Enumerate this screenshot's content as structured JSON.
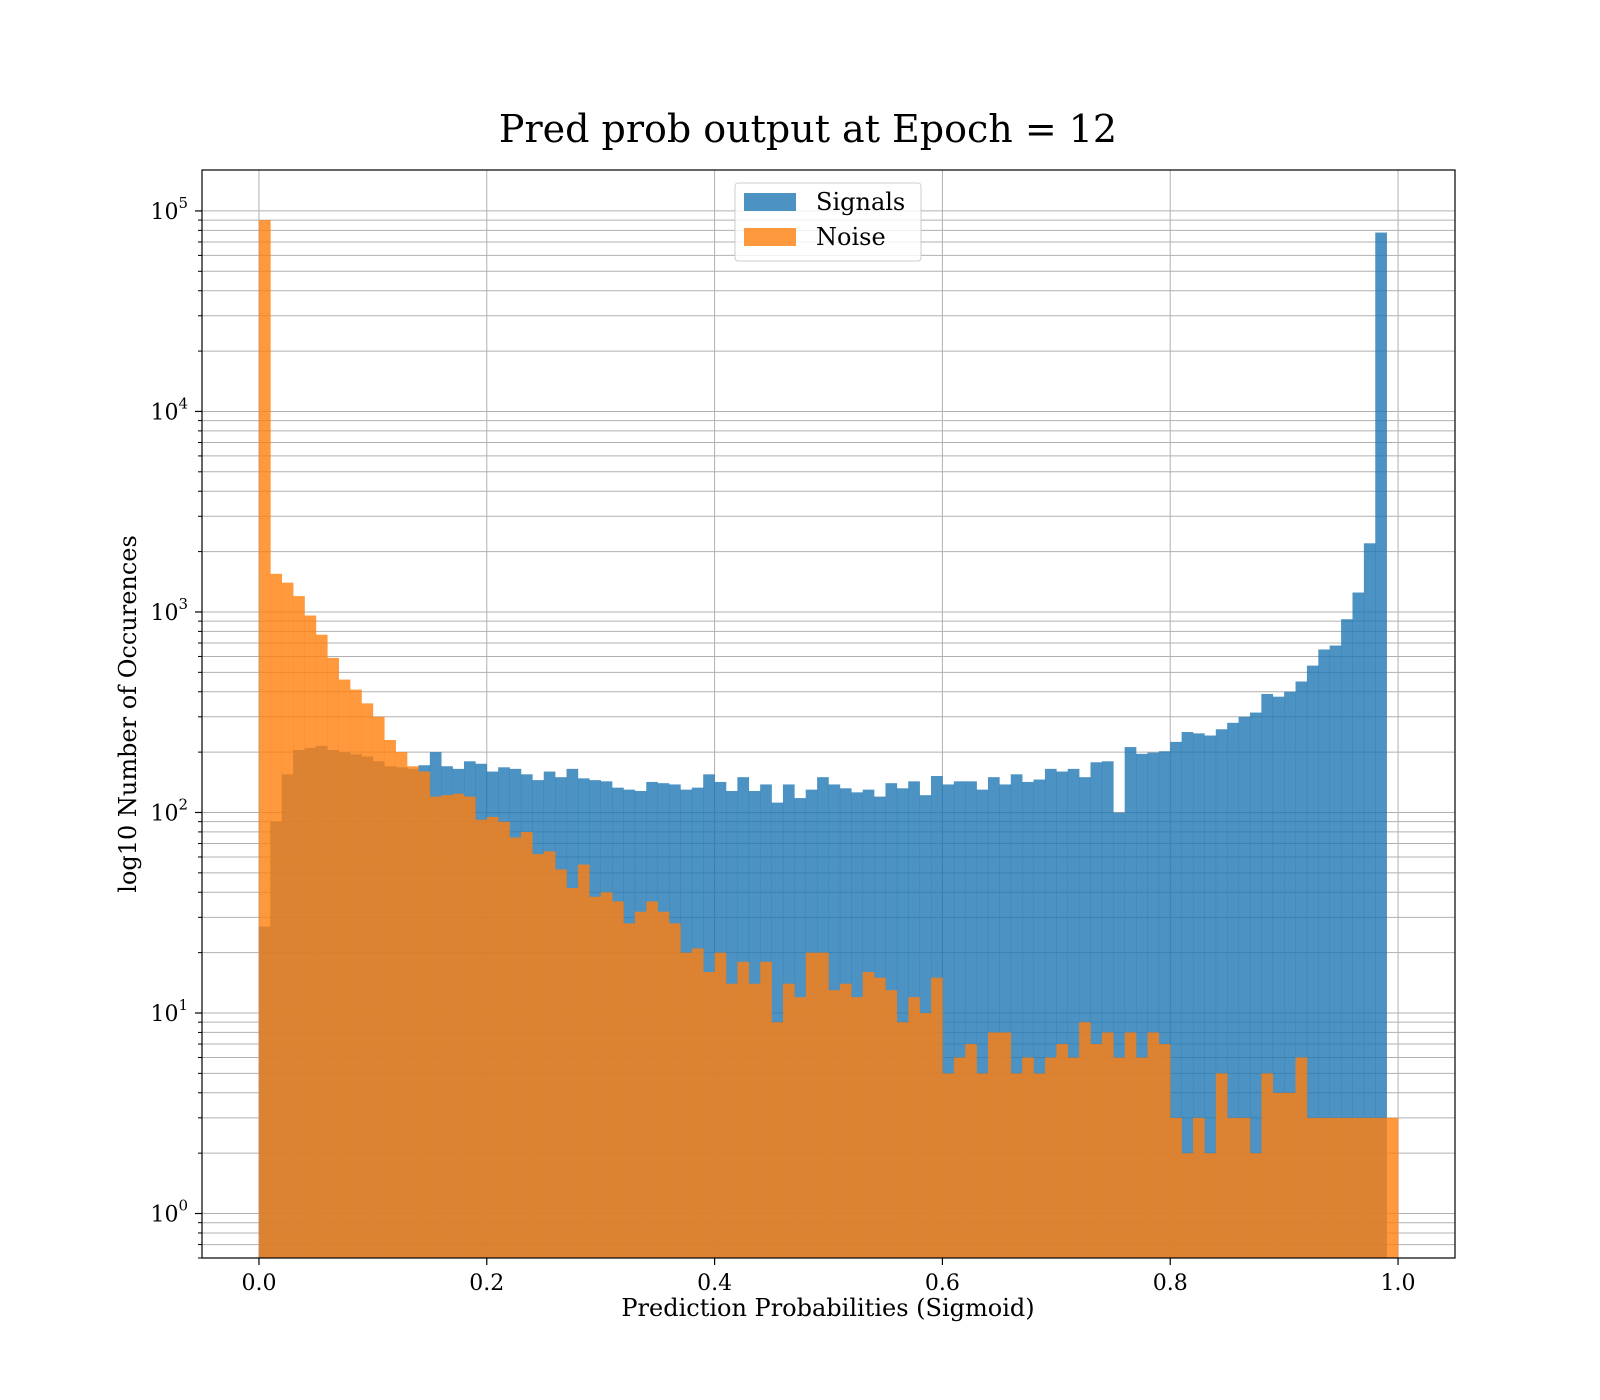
{
  "chart_data": {
    "type": "histogram",
    "title": "Pred prob output at Epoch = 12",
    "xlabel": "Prediction Probabilities (Sigmoid)",
    "ylabel": "log10 Number of Occurences",
    "xlim": [
      -0.05,
      1.05
    ],
    "ylim": [
      0.6,
      160000
    ],
    "yscale": "log",
    "grid": true,
    "legend_position": "upper center",
    "x_ticks": [
      {
        "value": 0.0,
        "label": "0.0"
      },
      {
        "value": 0.2,
        "label": "0.2"
      },
      {
        "value": 0.4,
        "label": "0.4"
      },
      {
        "value": 0.6,
        "label": "0.6"
      },
      {
        "value": 0.8,
        "label": "0.8"
      },
      {
        "value": 1.0,
        "label": "1.0"
      }
    ],
    "y_ticks": [
      {
        "value": 1,
        "base": "10",
        "exp": "0"
      },
      {
        "value": 10,
        "base": "10",
        "exp": "1"
      },
      {
        "value": 100,
        "base": "10",
        "exp": "2"
      },
      {
        "value": 1000,
        "base": "10",
        "exp": "3"
      },
      {
        "value": 10000,
        "base": "10",
        "exp": "4"
      },
      {
        "value": 100000,
        "base": "10",
        "exp": "5"
      }
    ],
    "bin_range": [
      0,
      1
    ],
    "bins": 100,
    "series": [
      {
        "name": "Signals",
        "color": "#1f77b4",
        "alpha": 0.8,
        "counts": [
          27,
          90,
          155,
          205,
          210,
          215,
          205,
          200,
          195,
          190,
          180,
          170,
          168,
          165,
          172,
          200,
          170,
          165,
          180,
          175,
          160,
          168,
          165,
          155,
          145,
          160,
          150,
          165,
          148,
          145,
          143,
          133,
          130,
          128,
          142,
          140,
          138,
          130,
          133,
          155,
          142,
          128,
          150,
          128,
          138,
          112,
          138,
          118,
          130,
          150,
          138,
          132,
          126,
          130,
          120,
          140,
          132,
          143,
          122,
          152,
          138,
          143,
          143,
          130,
          150,
          138,
          155,
          142,
          146,
          165,
          160,
          165,
          150,
          178,
          180,
          100,
          212,
          196,
          199,
          202,
          225,
          252,
          248,
          242,
          260,
          280,
          300,
          315,
          390,
          378,
          400,
          450,
          540,
          650,
          680,
          920,
          1250,
          2200,
          78000,
          0
        ]
      },
      {
        "name": "Noise",
        "color": "#ff7f0e",
        "alpha": 0.8,
        "counts": [
          90000,
          1550,
          1400,
          1200,
          960,
          770,
          590,
          460,
          410,
          350,
          300,
          230,
          200,
          170,
          160,
          120,
          122,
          124,
          120,
          92,
          95,
          90,
          75,
          80,
          62,
          64,
          52,
          42,
          55,
          38,
          40,
          36,
          28,
          32,
          36,
          32,
          28,
          20,
          21,
          16,
          20,
          14,
          18,
          14,
          18,
          9,
          14,
          12,
          20,
          20,
          13,
          14,
          12,
          16,
          15,
          13,
          9,
          12,
          10,
          15,
          5,
          6,
          7,
          5,
          8,
          8,
          5,
          6,
          5,
          6,
          7,
          6,
          9,
          7,
          8,
          6,
          8,
          6,
          8,
          7,
          3,
          2,
          3,
          2,
          5,
          3,
          3,
          2,
          5,
          4,
          4,
          6,
          3,
          3,
          3,
          3,
          3,
          3,
          3,
          3
        ]
      }
    ]
  }
}
